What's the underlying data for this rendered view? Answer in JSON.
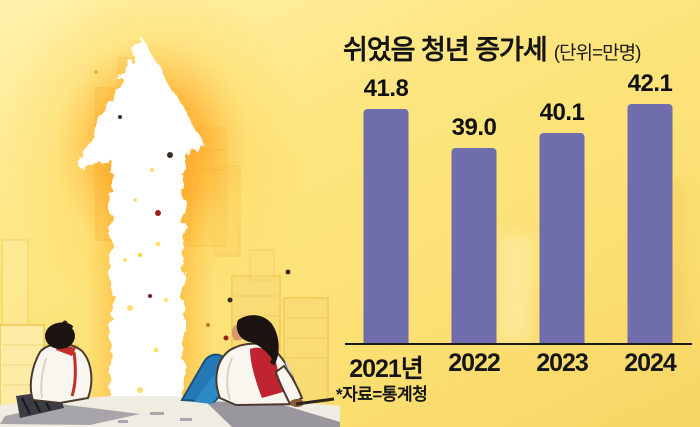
{
  "meta": {
    "background_color": "#FBE27A",
    "bar_color": "#6F6DAC",
    "text_color": "#141414",
    "axis_color": "#1A1A1A"
  },
  "chart_data": {
    "type": "bar",
    "title": "쉬었음 청년 증가세",
    "unit_label": "(단위=만명)",
    "categories": [
      "2021년",
      "2022",
      "2023",
      "2024"
    ],
    "values": [
      41.8,
      39.0,
      40.1,
      42.1
    ],
    "value_labels": [
      "41.8",
      "39.0",
      "40.1",
      "42.1"
    ],
    "source": "*자료=통계청",
    "bar_color": "#6F6DAC",
    "ylim": [
      25.3,
      45.5
    ],
    "grid": false,
    "legend": false,
    "baseline_truncated": true
  },
  "illustration": {
    "arrow_icon": "upward-arrow",
    "left_figure": "seated-person-facing-away",
    "right_figure": "seated-person-leaning-back",
    "backdrop": "city-skyline-glow"
  }
}
